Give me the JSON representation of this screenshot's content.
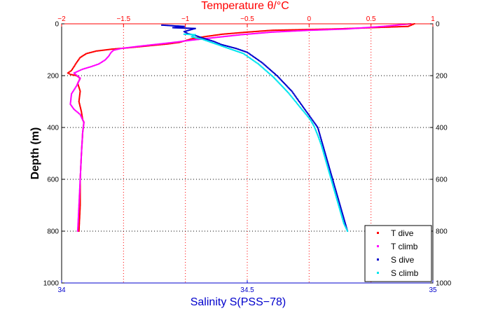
{
  "chart_data": {
    "type": "scatter",
    "title": "",
    "top_axis": {
      "label": "Temperature θ/°C",
      "lim": [
        -2,
        1
      ],
      "ticks": [
        -2,
        -1.5,
        -1,
        -0.5,
        0,
        0.5,
        1
      ],
      "tick_labels": [
        "−2",
        "−1.5",
        "−1",
        "−0.5",
        "0",
        "0.5",
        "1"
      ],
      "color": "#ff0000"
    },
    "bottom_axis": {
      "label": "Salinity S(PSS−78)",
      "lim": [
        34,
        35
      ],
      "ticks": [
        34,
        34.5,
        35
      ],
      "tick_labels": [
        "34",
        "34.5",
        "35"
      ],
      "color": "#0000cc"
    },
    "y_axis": {
      "label": "Depth (m)",
      "lim": [
        0,
        1000
      ],
      "reversed": true,
      "ticks": [
        0,
        200,
        400,
        600,
        800,
        1000
      ],
      "tick_labels": [
        "0",
        "200",
        "400",
        "600",
        "800",
        "1000"
      ]
    },
    "grid": true,
    "legend_position": "bottom-right",
    "series": [
      {
        "name": "T dive",
        "axis": "top",
        "color": "#ff0000",
        "points": [
          [
            0.85,
            0
          ],
          [
            0.8,
            10
          ],
          [
            0.5,
            15
          ],
          [
            0.2,
            20
          ],
          [
            0.0,
            22
          ],
          [
            -0.3,
            25
          ],
          [
            -0.5,
            32
          ],
          [
            -0.7,
            40
          ],
          [
            -0.85,
            50
          ],
          [
            -0.95,
            58
          ],
          [
            -1.0,
            65
          ],
          [
            -1.05,
            72
          ],
          [
            -1.15,
            78
          ],
          [
            -1.3,
            85
          ],
          [
            -1.45,
            92
          ],
          [
            -1.6,
            98
          ],
          [
            -1.72,
            105
          ],
          [
            -1.8,
            115
          ],
          [
            -1.85,
            130
          ],
          [
            -1.88,
            150
          ],
          [
            -1.9,
            165
          ],
          [
            -1.92,
            180
          ],
          [
            -1.95,
            190
          ],
          [
            -1.93,
            195
          ],
          [
            -1.88,
            200
          ],
          [
            -1.85,
            210
          ],
          [
            -1.87,
            230
          ],
          [
            -1.85,
            260
          ],
          [
            -1.86,
            300
          ],
          [
            -1.84,
            340
          ],
          [
            -1.83,
            370
          ],
          [
            -1.82,
            380
          ],
          [
            -1.83,
            420
          ],
          [
            -1.84,
            500
          ],
          [
            -1.85,
            600
          ],
          [
            -1.85,
            700
          ],
          [
            -1.86,
            800
          ]
        ]
      },
      {
        "name": "T climb",
        "axis": "top",
        "color": "#ff00ff",
        "points": [
          [
            0.82,
            0
          ],
          [
            0.6,
            10
          ],
          [
            0.3,
            20
          ],
          [
            0.0,
            25
          ],
          [
            -0.3,
            32
          ],
          [
            -0.55,
            42
          ],
          [
            -0.8,
            55
          ],
          [
            -0.95,
            63
          ],
          [
            -1.1,
            72
          ],
          [
            -1.25,
            80
          ],
          [
            -1.4,
            88
          ],
          [
            -1.52,
            95
          ],
          [
            -1.58,
            102
          ],
          [
            -1.6,
            110
          ],
          [
            -1.62,
            125
          ],
          [
            -1.65,
            140
          ],
          [
            -1.7,
            155
          ],
          [
            -1.76,
            165
          ],
          [
            -1.83,
            175
          ],
          [
            -1.9,
            190
          ],
          [
            -1.85,
            210
          ],
          [
            -1.88,
            240
          ],
          [
            -1.92,
            270
          ],
          [
            -1.93,
            310
          ],
          [
            -1.9,
            330
          ],
          [
            -1.85,
            350
          ],
          [
            -1.82,
            380
          ],
          [
            -1.83,
            420
          ],
          [
            -1.84,
            500
          ],
          [
            -1.85,
            600
          ],
          [
            -1.86,
            700
          ],
          [
            -1.87,
            800
          ]
        ]
      },
      {
        "name": "S dive",
        "axis": "bottom",
        "color": "#0000cc",
        "points": [
          [
            34.27,
            5
          ],
          [
            34.33,
            10
          ],
          [
            34.3,
            15
          ],
          [
            34.36,
            18
          ],
          [
            34.33,
            30
          ],
          [
            34.34,
            38
          ],
          [
            34.36,
            45
          ],
          [
            34.38,
            55
          ],
          [
            34.41,
            68
          ],
          [
            34.43,
            80
          ],
          [
            34.47,
            95
          ],
          [
            34.5,
            110
          ],
          [
            34.52,
            130
          ],
          [
            34.54,
            150
          ],
          [
            34.56,
            175
          ],
          [
            34.58,
            200
          ],
          [
            34.6,
            230
          ],
          [
            34.62,
            260
          ],
          [
            34.64,
            300
          ],
          [
            34.66,
            340
          ],
          [
            34.68,
            380
          ],
          [
            34.69,
            400
          ],
          [
            34.7,
            450
          ],
          [
            34.71,
            500
          ],
          [
            34.72,
            550
          ],
          [
            34.73,
            600
          ],
          [
            34.74,
            650
          ],
          [
            34.75,
            700
          ],
          [
            34.76,
            750
          ],
          [
            34.77,
            800
          ]
        ]
      },
      {
        "name": "S climb",
        "axis": "bottom",
        "color": "#00e5ee",
        "points": [
          [
            34.33,
            40
          ],
          [
            34.36,
            42
          ],
          [
            34.35,
            50
          ],
          [
            34.38,
            60
          ],
          [
            34.4,
            70
          ],
          [
            34.43,
            85
          ],
          [
            34.46,
            100
          ],
          [
            34.49,
            115
          ],
          [
            34.51,
            135
          ],
          [
            34.53,
            155
          ],
          [
            34.55,
            180
          ],
          [
            34.57,
            205
          ],
          [
            34.59,
            235
          ],
          [
            34.61,
            265
          ],
          [
            34.63,
            300
          ],
          [
            34.65,
            335
          ],
          [
            34.67,
            370
          ],
          [
            34.68,
            395
          ],
          [
            34.69,
            430
          ],
          [
            34.7,
            470
          ],
          [
            34.71,
            520
          ],
          [
            34.72,
            570
          ],
          [
            34.73,
            620
          ],
          [
            34.74,
            670
          ],
          [
            34.75,
            720
          ],
          [
            34.76,
            770
          ],
          [
            34.77,
            800
          ]
        ]
      }
    ]
  }
}
